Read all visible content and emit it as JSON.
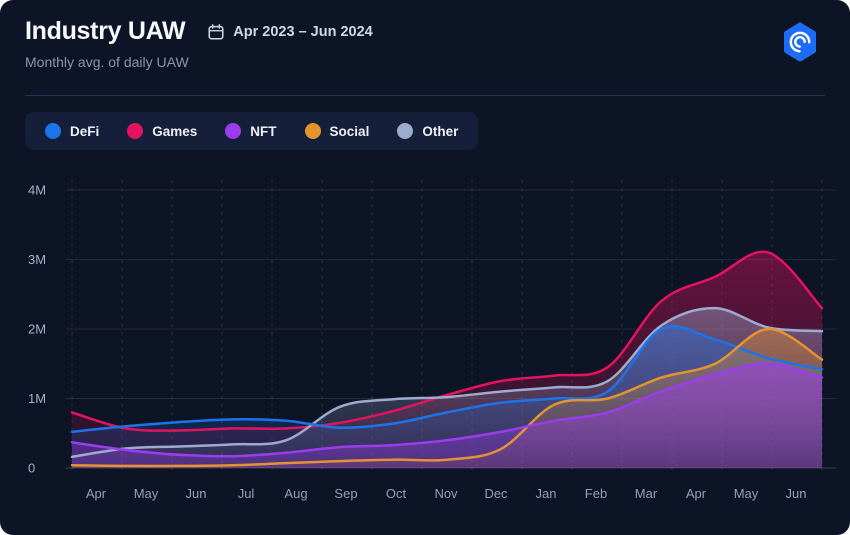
{
  "header": {
    "title": "Industry UAW",
    "date_range": "Apr 2023 – Jun 2024",
    "subtitle": "Monthly avg. of daily UAW"
  },
  "legend": {
    "items": [
      {
        "label": "DeFi",
        "color": "#1b74ea"
      },
      {
        "label": "Games",
        "color": "#e4125f"
      },
      {
        "label": "NFT",
        "color": "#9c3ced"
      },
      {
        "label": "Social",
        "color": "#e39430"
      },
      {
        "label": "Other",
        "color": "#9dabce"
      }
    ]
  },
  "colors": {
    "background": "#0d1426",
    "legend_panel": "#151f3a",
    "divider": "#242f52",
    "axis_text": "#97a1b6",
    "logo_blue": "#1e6cf5"
  },
  "chart_data": {
    "type": "area",
    "title": "Industry UAW",
    "subtitle": "Monthly avg. of daily UAW",
    "date_range": "Apr 2023 – Jun 2024",
    "unit": "millions of UAW (monthly avg. of daily UAW)",
    "categories": [
      "Apr",
      "May",
      "Jun",
      "Jul",
      "Aug",
      "Sep",
      "Oct",
      "Nov",
      "Dec",
      "Jan",
      "Feb",
      "Mar",
      "Apr",
      "May",
      "Jun"
    ],
    "series": [
      {
        "name": "DeFi",
        "color": "#1b74ea",
        "values": [
          0.52,
          0.6,
          0.66,
          0.7,
          0.68,
          0.58,
          0.64,
          0.8,
          0.94,
          1.0,
          1.1,
          2.0,
          1.85,
          1.58,
          1.42
        ]
      },
      {
        "name": "Games",
        "color": "#e4125f",
        "values": [
          0.8,
          0.57,
          0.54,
          0.57,
          0.57,
          0.65,
          0.82,
          1.05,
          1.25,
          1.33,
          1.45,
          2.4,
          2.75,
          3.1,
          2.3
        ]
      },
      {
        "name": "NFT",
        "color": "#9c3ced",
        "values": [
          0.37,
          0.26,
          0.19,
          0.17,
          0.22,
          0.3,
          0.33,
          0.4,
          0.52,
          0.68,
          0.8,
          1.1,
          1.35,
          1.5,
          1.3
        ]
      },
      {
        "name": "Social",
        "color": "#e39430",
        "values": [
          0.04,
          0.03,
          0.03,
          0.04,
          0.07,
          0.1,
          0.12,
          0.12,
          0.27,
          0.91,
          1.0,
          1.3,
          1.5,
          2.0,
          1.56
        ]
      },
      {
        "name": "Other",
        "color": "#9dabce",
        "values": [
          0.16,
          0.28,
          0.31,
          0.34,
          0.4,
          0.88,
          0.99,
          1.02,
          1.1,
          1.16,
          1.25,
          2.05,
          2.3,
          2.02,
          1.97
        ]
      }
    ],
    "draw_order": [
      1,
      4,
      0,
      3,
      2
    ],
    "ylim": [
      0,
      4
    ],
    "ytick_labels": [
      "0",
      "1M",
      "2M",
      "3M",
      "4M"
    ],
    "grid": {
      "horizontal": "solid",
      "vertical": "dashed"
    },
    "legend_position": "top-left"
  }
}
